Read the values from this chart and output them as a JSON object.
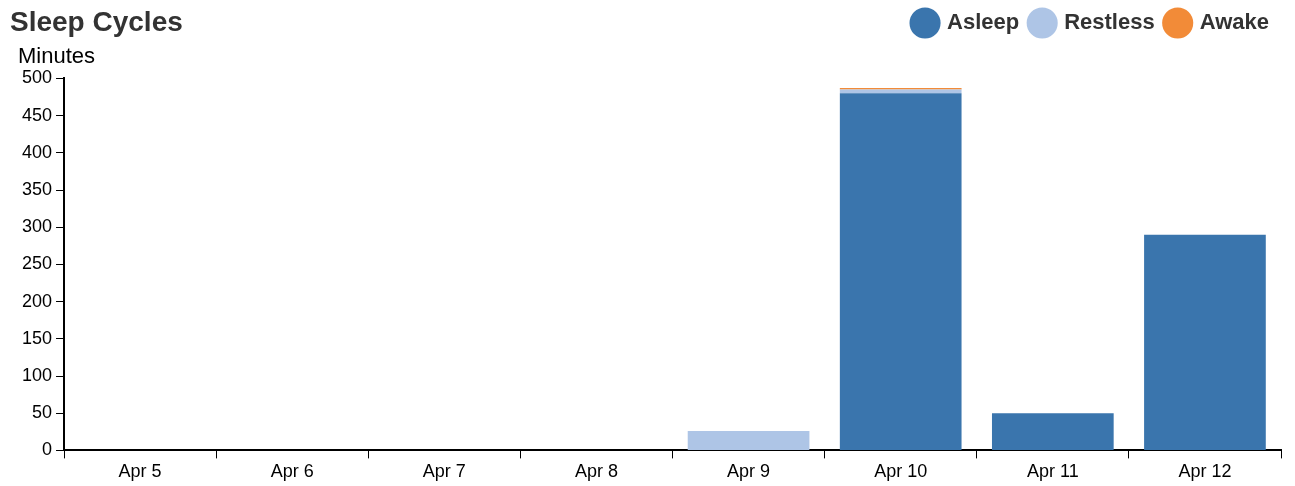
{
  "chart_data": {
    "type": "bar",
    "title": "Sleep Cycles",
    "ylabel": "Minutes",
    "stacked": true,
    "grid": false,
    "legend": "top right",
    "categories": [
      "Apr 5",
      "Apr 6",
      "Apr 7",
      "Apr 8",
      "Apr 9",
      "Apr 10",
      "Apr 11",
      "Apr 12"
    ],
    "series": [
      {
        "name": "Asleep",
        "color": "#3a75ad",
        "values": [
          null,
          null,
          null,
          null,
          null,
          480,
          50,
          290
        ]
      },
      {
        "name": "Restless",
        "color": "#aec5e6",
        "values": [
          null,
          null,
          null,
          null,
          26,
          5,
          null,
          null
        ]
      },
      {
        "name": "Awake",
        "color": "#f28b38",
        "values": [
          null,
          null,
          null,
          null,
          null,
          2,
          null,
          null
        ]
      }
    ],
    "ylim": [
      0,
      500
    ],
    "yticks": [
      0,
      50,
      100,
      150,
      200,
      250,
      300,
      350,
      400,
      450,
      500
    ]
  }
}
